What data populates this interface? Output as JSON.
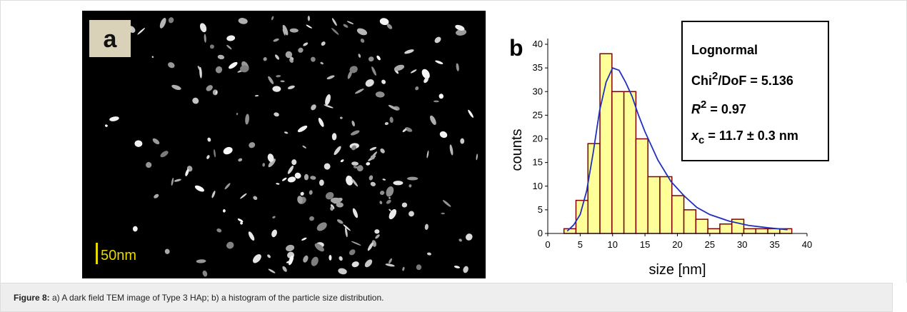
{
  "panel_a": {
    "label": "a",
    "scale_bar": "50nm"
  },
  "chart_data": {
    "type": "histogram",
    "panel_label": "b",
    "x_label": "size [nm]",
    "y_label": "counts",
    "bins": [
      2.5,
      4.35,
      6.2,
      8.05,
      9.9,
      11.75,
      13.6,
      15.45,
      17.3,
      19.15,
      21,
      22.85,
      24.7,
      26.55,
      28.4,
      30.25,
      32.1,
      33.95,
      35.8,
      37.65
    ],
    "counts": [
      1,
      7,
      19,
      38,
      30,
      30,
      20,
      12,
      12,
      8,
      5,
      3,
      1,
      2,
      3,
      1,
      1,
      1,
      1
    ],
    "color": "#ffff99",
    "edge_color": "#800000",
    "fit": {
      "color": "#1f2fbf",
      "x": [
        3,
        4,
        5,
        6,
        7,
        8,
        9,
        10,
        11,
        12,
        13,
        14,
        15,
        17,
        19,
        21,
        23,
        25,
        28,
        31,
        34,
        37
      ],
      "values": [
        0.5,
        1.8,
        4,
        9,
        17,
        26,
        32,
        35,
        34.5,
        32,
        29,
        25,
        21.5,
        15.5,
        11,
        8,
        5.5,
        4,
        2.6,
        1.7,
        1.2,
        0.8
      ]
    },
    "xlim": [
      0,
      40
    ],
    "xticks": [
      0,
      5,
      10,
      15,
      20,
      25,
      30,
      35,
      40
    ],
    "ylim": [
      0,
      40
    ],
    "yticks": [
      0,
      5,
      10,
      15,
      20,
      25,
      30,
      35,
      40
    ],
    "annotations": {
      "title": "Lognormal",
      "chi": [
        "Chi",
        "2",
        "/DoF = 5.136"
      ],
      "r2": [
        "R",
        "2",
        " = 0.97"
      ],
      "xc": [
        "x",
        "c",
        " = 11.7 ± 0.3 nm"
      ]
    }
  },
  "caption": {
    "label": "Figure 8:",
    "text": " a) A dark field TEM image of Type 3 HAp; b) a histogram of the particle size distribution."
  }
}
